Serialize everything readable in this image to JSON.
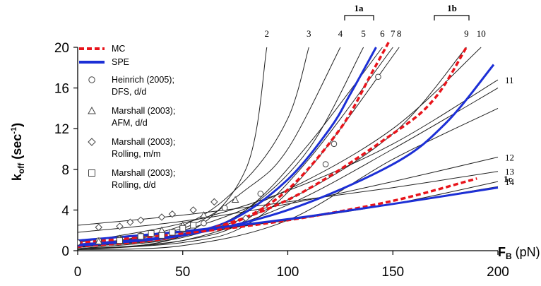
{
  "chart_data": {
    "type": "line",
    "title": "",
    "xlabel": {
      "main": "F",
      "sub": "B",
      "unit": " (pN)"
    },
    "ylabel": {
      "main": "k",
      "sub": "off",
      "unit": " (sec",
      "sup": "-1",
      "close": ")"
    },
    "xlim": [
      0,
      200
    ],
    "ylim": [
      0,
      20
    ],
    "xticks": [
      0,
      50,
      100,
      150,
      200
    ],
    "yticks": [
      0,
      4,
      8,
      12,
      16,
      20
    ],
    "grid": false,
    "legend_position": "top-left",
    "legend": [
      {
        "label": "MC",
        "kind": "line",
        "style": "dashed",
        "color": "#e8141b"
      },
      {
        "label": "SPE",
        "kind": "line",
        "style": "solid",
        "color": "#1c2fd6"
      },
      {
        "label_lines": [
          "Heinrich (2005);",
          "DFS, d/d"
        ],
        "kind": "marker",
        "marker": "circle"
      },
      {
        "label_lines": [
          "Marshall (2003);",
          "AFM, d/d"
        ],
        "kind": "marker",
        "marker": "triangle"
      },
      {
        "label_lines": [
          "Marshall (2003);",
          "Rolling, m/m"
        ],
        "kind": "marker",
        "marker": "diamond"
      },
      {
        "label_lines": [
          "Marshall (2003);",
          "Rolling, d/d"
        ],
        "kind": "marker",
        "marker": "square"
      }
    ],
    "groups": [
      {
        "label": "1a"
      },
      {
        "label": "1b"
      },
      {
        "label": "1c"
      }
    ],
    "thin_curves": [
      {
        "label": "2",
        "color": "#222222",
        "points": [
          [
            0,
            0.1
          ],
          [
            50,
            1.5
          ],
          [
            80,
            8
          ],
          [
            90,
            20
          ]
        ]
      },
      {
        "label": "3",
        "color": "#222222",
        "points": [
          [
            0,
            0.3
          ],
          [
            50,
            2.5
          ],
          [
            80,
            7
          ],
          [
            100,
            13
          ],
          [
            110,
            20
          ]
        ]
      },
      {
        "label": "4",
        "color": "#222222",
        "points": [
          [
            0,
            0.5
          ],
          [
            50,
            2.2
          ],
          [
            80,
            6
          ],
          [
            100,
            10
          ],
          [
            125,
            20
          ]
        ]
      },
      {
        "label": "5",
        "color": "#222222",
        "points": [
          [
            0,
            0.3
          ],
          [
            50,
            1.5
          ],
          [
            80,
            4
          ],
          [
            110,
            10
          ],
          [
            136,
            20
          ]
        ]
      },
      {
        "label": "6",
        "color": "#222222",
        "points": [
          [
            0,
            0.2
          ],
          [
            50,
            1.3
          ],
          [
            80,
            4
          ],
          [
            110,
            10.5
          ],
          [
            145,
            20
          ]
        ]
      },
      {
        "label": "7",
        "color": "#222222",
        "points": [
          [
            0,
            0.1
          ],
          [
            50,
            1
          ],
          [
            80,
            3
          ],
          [
            110,
            9
          ],
          [
            150,
            20
          ]
        ]
      },
      {
        "label": "8",
        "color": "#222222",
        "points": [
          [
            0,
            0.1
          ],
          [
            50,
            0.8
          ],
          [
            80,
            2.5
          ],
          [
            110,
            8
          ],
          [
            153,
            20
          ]
        ]
      },
      {
        "label": "9",
        "color": "#222222",
        "points": [
          [
            0,
            0.4
          ],
          [
            50,
            1.4
          ],
          [
            100,
            5
          ],
          [
            150,
            11.5
          ],
          [
            185,
            20
          ]
        ]
      },
      {
        "label": "10",
        "color": "#222222",
        "points": [
          [
            0,
            0.6
          ],
          [
            50,
            2
          ],
          [
            100,
            6
          ],
          [
            150,
            12
          ],
          [
            192,
            20
          ]
        ]
      },
      {
        "label": "11",
        "color": "#222222",
        "points": [
          [
            0,
            0.8
          ],
          [
            50,
            2.7
          ],
          [
            100,
            5.9
          ],
          [
            150,
            10.5
          ],
          [
            200,
            16.8
          ]
        ]
      },
      {
        "label": "12",
        "color": "#222222",
        "points": [
          [
            0,
            1.8
          ],
          [
            50,
            2.9
          ],
          [
            100,
            4.6
          ],
          [
            150,
            6.8
          ],
          [
            200,
            9.2
          ]
        ]
      },
      {
        "label": "13",
        "color": "#222222",
        "points": [
          [
            0,
            2.5
          ],
          [
            50,
            3.5
          ],
          [
            100,
            4.8
          ],
          [
            150,
            6.2
          ],
          [
            200,
            7.8
          ]
        ]
      },
      {
        "label": "14",
        "color": "#222222",
        "points": [
          [
            0,
            1
          ],
          [
            50,
            1.8
          ],
          [
            100,
            3
          ],
          [
            150,
            4.6
          ],
          [
            200,
            6.8
          ]
        ]
      },
      {
        "label": "",
        "color": "#222222",
        "points": [
          [
            0,
            0.2
          ],
          [
            50,
            1
          ],
          [
            100,
            4.5
          ],
          [
            150,
            10
          ],
          [
            200,
            16
          ]
        ]
      },
      {
        "label": "",
        "color": "#222222",
        "points": [
          [
            0,
            0.1
          ],
          [
            50,
            0.5
          ],
          [
            100,
            3
          ],
          [
            150,
            9
          ],
          [
            200,
            14
          ]
        ]
      },
      {
        "label": "",
        "color": "#222222",
        "points": [
          [
            0,
            0.4
          ],
          [
            50,
            1.6
          ],
          [
            100,
            3
          ],
          [
            150,
            4.6
          ],
          [
            200,
            6.3
          ]
        ]
      }
    ],
    "series": [
      {
        "name": "MC",
        "group": "1a",
        "style": "dashed",
        "color": "#e8141b",
        "points": [
          [
            0,
            0.7
          ],
          [
            25,
            1.1
          ],
          [
            50,
            1.6
          ],
          [
            75,
            2.8
          ],
          [
            100,
            6
          ],
          [
            125,
            12
          ],
          [
            140,
            17.5
          ],
          [
            148,
            20.5
          ]
        ]
      },
      {
        "name": "SPE",
        "group": "1a",
        "style": "solid",
        "color": "#1c2fd6",
        "points": [
          [
            0,
            0.6
          ],
          [
            25,
            1
          ],
          [
            50,
            1.6
          ],
          [
            75,
            3.2
          ],
          [
            100,
            7
          ],
          [
            120,
            12
          ],
          [
            130,
            15.5
          ],
          [
            142,
            20
          ]
        ]
      },
      {
        "name": "MC",
        "group": "1b",
        "style": "dashed",
        "color": "#e8141b",
        "points": [
          [
            0,
            0.4
          ],
          [
            50,
            1.5
          ],
          [
            100,
            5
          ],
          [
            150,
            11.5
          ],
          [
            170,
            15
          ],
          [
            185,
            20
          ]
        ]
      },
      {
        "name": "SPE",
        "group": "1b",
        "style": "solid",
        "color": "#1c2fd6",
        "points": [
          [
            0,
            0.5
          ],
          [
            50,
            1.5
          ],
          [
            100,
            4
          ],
          [
            150,
            8.5
          ],
          [
            175,
            12.5
          ],
          [
            198,
            18.3
          ]
        ]
      },
      {
        "name": "MC",
        "group": "1c",
        "style": "dashed",
        "color": "#e8141b",
        "points": [
          [
            0,
            0.8
          ],
          [
            50,
            1.7
          ],
          [
            100,
            3
          ],
          [
            150,
            4.9
          ],
          [
            190,
            7.1
          ]
        ]
      },
      {
        "name": "SPE",
        "group": "1c",
        "style": "solid",
        "color": "#1c2fd6",
        "points": [
          [
            0,
            1
          ],
          [
            50,
            1.9
          ],
          [
            100,
            3.1
          ],
          [
            150,
            4.6
          ],
          [
            200,
            6.2
          ]
        ]
      }
    ],
    "markers": [
      {
        "marker": "circle",
        "points": [
          [
            0,
            0.8
          ],
          [
            10,
            1
          ],
          [
            20,
            1.2
          ],
          [
            30,
            1.5
          ],
          [
            40,
            1.7
          ],
          [
            50,
            2.1
          ],
          [
            60,
            2.7
          ],
          [
            70,
            4.2
          ],
          [
            87,
            5.6
          ],
          [
            118,
            8.5
          ],
          [
            122,
            10.5
          ],
          [
            143,
            17.1
          ]
        ]
      },
      {
        "marker": "triangle",
        "points": [
          [
            10,
            0.9
          ],
          [
            20,
            1.2
          ],
          [
            30,
            1.5
          ],
          [
            40,
            2
          ],
          [
            50,
            2.5
          ],
          [
            60,
            3.5
          ],
          [
            75,
            5
          ]
        ]
      },
      {
        "marker": "diamond",
        "points": [
          [
            10,
            2.3
          ],
          [
            20,
            2.4
          ],
          [
            25,
            2.8
          ],
          [
            30,
            3
          ],
          [
            40,
            3.3
          ],
          [
            45,
            3.6
          ],
          [
            55,
            4
          ],
          [
            65,
            4.8
          ],
          [
            80,
            3.2
          ]
        ]
      },
      {
        "marker": "square",
        "points": [
          [
            20,
            1
          ],
          [
            30,
            1.4
          ],
          [
            35,
            1.7
          ],
          [
            40,
            1.5
          ],
          [
            45,
            1.8
          ],
          [
            50,
            2.2
          ],
          [
            55,
            2.5
          ]
        ]
      }
    ]
  }
}
